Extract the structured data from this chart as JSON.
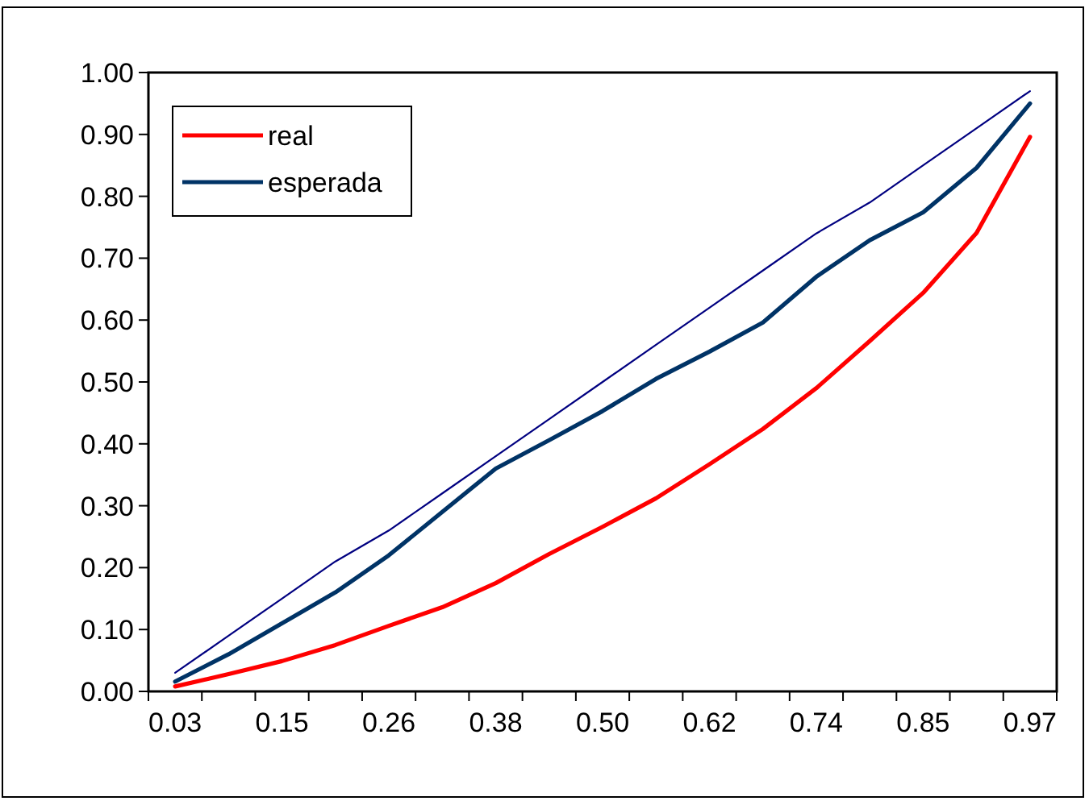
{
  "chart_data": {
    "type": "line",
    "categories": [
      "0.03",
      null,
      "0.15",
      null,
      "0.26",
      null,
      "0.38",
      null,
      "0.50",
      null,
      "0.62",
      null,
      "0.74",
      null,
      "0.85",
      null,
      "0.97"
    ],
    "series": [
      {
        "name": "real",
        "color": "#ff0000",
        "values": [
          0.008,
          0.028,
          0.049,
          0.075,
          0.106,
          0.136,
          0.175,
          0.222,
          0.266,
          0.312,
          0.367,
          0.424,
          0.49,
          0.566,
          0.644,
          0.741,
          0.896
        ]
      },
      {
        "name": "esperada",
        "color": "#003366",
        "values": [
          0.016,
          0.06,
          0.11,
          0.16,
          0.22,
          0.29,
          0.36,
          0.406,
          0.453,
          0.505,
          0.549,
          0.596,
          0.67,
          0.729,
          0.774,
          0.846,
          0.95
        ]
      },
      {
        "color": "#000080",
        "values": [
          0.03,
          0.09,
          0.15,
          0.21,
          0.26,
          0.32,
          0.38,
          0.44,
          0.5,
          0.56,
          0.62,
          0.68,
          0.74,
          0.79,
          0.85,
          0.91,
          0.97
        ]
      }
    ],
    "ylim": [
      0,
      1
    ],
    "yticks": [
      {
        "value": 0,
        "label": "0.00"
      },
      {
        "value": 0.1,
        "label": "0.10"
      },
      {
        "value": 0.2,
        "label": "0.20"
      },
      {
        "value": 0.3,
        "label": "0.30"
      },
      {
        "value": 0.4,
        "label": "0.40"
      },
      {
        "value": 0.5,
        "label": "0.50"
      },
      {
        "value": 0.6,
        "label": "0.60"
      },
      {
        "value": 0.7,
        "label": "0.70"
      },
      {
        "value": 0.8,
        "label": "0.80"
      },
      {
        "value": 0.9,
        "label": "0.90"
      },
      {
        "value": 1,
        "label": "1.00"
      }
    ],
    "grid": false,
    "legend": "top left",
    "marker": "none",
    "line_style": "solid"
  }
}
